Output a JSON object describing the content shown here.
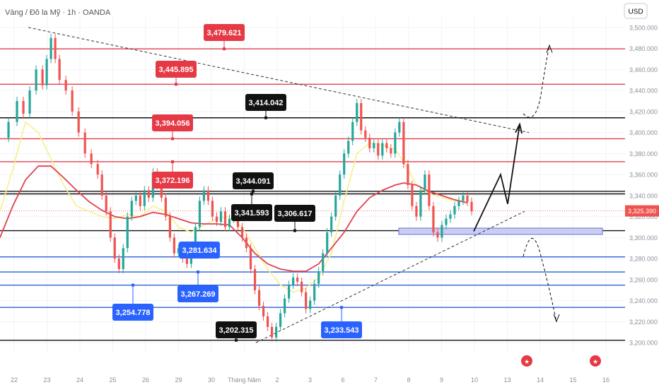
{
  "header": {
    "title": "Vàng / Đô la Mỹ · 1h · OANDA",
    "currency_button": "USD"
  },
  "chart_data": {
    "type": "line",
    "ylim": [
      3190,
      3510
    ],
    "y_ticks": [
      "3,500.000",
      "3,480.000",
      "3,460.000",
      "3,440.000",
      "3,420.000",
      "3,400.000",
      "3,380.000",
      "3,360.000",
      "3,340.000",
      "3,320.000",
      "3,300.000",
      "3,280.000",
      "3,260.000",
      "3,240.000",
      "3,220.000",
      "3,200.000"
    ],
    "y_tick_values": [
      3500,
      3480,
      3460,
      3440,
      3420,
      3400,
      3380,
      3360,
      3340,
      3320,
      3300,
      3280,
      3260,
      3240,
      3220,
      3200
    ],
    "x_ticks": [
      "22",
      "23",
      "24",
      "25",
      "26",
      "29",
      "30",
      "Tháng Năm",
      "2",
      "3",
      "6",
      "7",
      "8",
      "9",
      "10",
      "13",
      "14",
      "15",
      "16"
    ],
    "current_price": {
      "label": "3,325.390",
      "value": 3325.39
    },
    "levels": [
      {
        "label": "3,479.621",
        "value": 3479.621,
        "color": "#e0414f",
        "badge": "#e53945",
        "style": "red"
      },
      {
        "label": "3,445.895",
        "value": 3445.895,
        "color": "#e0414f",
        "badge": "#e53945",
        "style": "red"
      },
      {
        "label": "3,414.042",
        "value": 3414.042,
        "color": "#111111",
        "badge": "#111111",
        "style": "black"
      },
      {
        "label": "3,394.056",
        "value": 3394.056,
        "color": "#e0414f",
        "badge": "#e53945",
        "style": "red"
      },
      {
        "label": "3,372.196",
        "value": 3372.196,
        "color": "#e0414f",
        "badge": "#e53945",
        "style": "red"
      },
      {
        "label": "3,344.091",
        "value": 3344.091,
        "color": "#111111",
        "badge": "#111111",
        "style": "black"
      },
      {
        "label": "3,341.593",
        "value": 3341.593,
        "color": "#111111",
        "badge": "#111111",
        "style": "black"
      },
      {
        "label": "3,306.617",
        "value": 3306.617,
        "color": "#111111",
        "badge": "#111111",
        "style": "black"
      },
      {
        "label": "3,281.634",
        "value": 3281.634,
        "color": "#2d5fd6",
        "badge": "#2962ff",
        "style": "blue"
      },
      {
        "label": "3,267.269",
        "value": 3267.269,
        "color": "#2d5fd6",
        "badge": "#2962ff",
        "style": "blue"
      },
      {
        "label": "3,254.778",
        "value": 3254.778,
        "color": "#2d5fd6",
        "badge": "#2962ff",
        "style": "blue"
      },
      {
        "label": "3,233.543",
        "value": 3233.543,
        "color": "#2d5fd6",
        "badge": "#2962ff",
        "style": "blue"
      },
      {
        "label": "3,202.315",
        "value": 3202.315,
        "color": "#111111",
        "badge": "#111111",
        "style": "black"
      }
    ],
    "price_path": [
      [
        0,
        3395
      ],
      [
        4,
        3410
      ],
      [
        8,
        3430
      ],
      [
        11,
        3418
      ],
      [
        14,
        3440
      ],
      [
        17,
        3460
      ],
      [
        20,
        3445
      ],
      [
        22,
        3470
      ],
      [
        24,
        3490
      ],
      [
        26,
        3470
      ],
      [
        28,
        3450
      ],
      [
        31,
        3440
      ],
      [
        34,
        3420
      ],
      [
        37,
        3400
      ],
      [
        40,
        3380
      ],
      [
        43,
        3370
      ],
      [
        46,
        3360
      ],
      [
        48,
        3340
      ],
      [
        50,
        3325
      ],
      [
        52,
        3300
      ],
      [
        54,
        3280
      ],
      [
        56,
        3270
      ],
      [
        58,
        3290
      ],
      [
        60,
        3320
      ],
      [
        62,
        3335
      ],
      [
        64,
        3340
      ],
      [
        66,
        3330
      ],
      [
        68,
        3345
      ],
      [
        70,
        3338
      ],
      [
        72,
        3362
      ],
      [
        74,
        3350
      ],
      [
        76,
        3338
      ],
      [
        78,
        3320
      ],
      [
        80,
        3300
      ],
      [
        82,
        3285
      ],
      [
        84,
        3290
      ],
      [
        86,
        3280
      ],
      [
        88,
        3275
      ],
      [
        90,
        3290
      ],
      [
        92,
        3310
      ],
      [
        94,
        3335
      ],
      [
        96,
        3345
      ],
      [
        98,
        3335
      ],
      [
        100,
        3320
      ],
      [
        102,
        3315
      ],
      [
        104,
        3325
      ],
      [
        106,
        3310
      ],
      [
        108,
        3318
      ],
      [
        110,
        3322
      ],
      [
        112,
        3310
      ],
      [
        114,
        3300
      ],
      [
        116,
        3290
      ],
      [
        118,
        3270
      ],
      [
        120,
        3250
      ],
      [
        122,
        3235
      ],
      [
        124,
        3225
      ],
      [
        126,
        3215
      ],
      [
        128,
        3205
      ],
      [
        130,
        3215
      ],
      [
        132,
        3228
      ],
      [
        134,
        3242
      ],
      [
        136,
        3255
      ],
      [
        138,
        3262
      ],
      [
        140,
        3258
      ],
      [
        142,
        3248
      ],
      [
        144,
        3232
      ],
      [
        146,
        3240
      ],
      [
        148,
        3256
      ],
      [
        150,
        3268
      ],
      [
        152,
        3285
      ],
      [
        154,
        3305
      ],
      [
        156,
        3320
      ],
      [
        158,
        3340
      ],
      [
        160,
        3360
      ],
      [
        162,
        3380
      ],
      [
        164,
        3392
      ],
      [
        166,
        3410
      ],
      [
        168,
        3428
      ],
      [
        170,
        3402
      ],
      [
        172,
        3395
      ],
      [
        174,
        3385
      ],
      [
        176,
        3390
      ],
      [
        178,
        3378
      ],
      [
        180,
        3390
      ],
      [
        182,
        3385
      ],
      [
        184,
        3380
      ],
      [
        186,
        3400
      ],
      [
        188,
        3410
      ],
      [
        190,
        3370
      ],
      [
        192,
        3350
      ],
      [
        194,
        3330
      ],
      [
        196,
        3320
      ],
      [
        198,
        3345
      ],
      [
        200,
        3360
      ],
      [
        202,
        3330
      ],
      [
        204,
        3305
      ],
      [
        206,
        3300
      ],
      [
        208,
        3312
      ],
      [
        210,
        3318
      ],
      [
        212,
        3322
      ],
      [
        214,
        3330
      ],
      [
        216,
        3335
      ],
      [
        218,
        3340
      ],
      [
        220,
        3334
      ],
      [
        222,
        3325
      ]
    ],
    "triangle_top": [
      [
        0,
        3500
      ],
      [
        232,
        3400
      ]
    ],
    "triangle_bottom": [
      [
        113,
        3200
      ],
      [
        232,
        3325
      ]
    ],
    "zone": {
      "low": 3303,
      "high": 3309
    },
    "projection": [
      [
        222,
        3306
      ],
      [
        228,
        3360
      ],
      [
        231,
        3332
      ],
      [
        236,
        3408
      ]
    ],
    "up_arc": [
      [
        238,
        3418
      ],
      [
        242,
        3412
      ],
      [
        246,
        3440
      ],
      [
        248,
        3482
      ]
    ],
    "down_arc": [
      [
        238,
        3282
      ],
      [
        242,
        3302
      ],
      [
        246,
        3278
      ],
      [
        250,
        3220
      ]
    ],
    "sma_path": [
      [
        0,
        3325
      ],
      [
        6,
        3365
      ],
      [
        12,
        3410
      ],
      [
        18,
        3400
      ],
      [
        24,
        3375
      ],
      [
        30,
        3350
      ],
      [
        36,
        3330
      ],
      [
        42,
        3325
      ],
      [
        48,
        3320
      ],
      [
        54,
        3318
      ],
      [
        60,
        3322
      ],
      [
        66,
        3320
      ],
      [
        72,
        3330
      ],
      [
        78,
        3325
      ],
      [
        84,
        3310
      ],
      [
        90,
        3305
      ],
      [
        96,
        3312
      ],
      [
        102,
        3318
      ],
      [
        108,
        3320
      ],
      [
        114,
        3310
      ],
      [
        120,
        3290
      ],
      [
        126,
        3270
      ],
      [
        132,
        3255
      ],
      [
        138,
        3248
      ],
      [
        144,
        3252
      ],
      [
        150,
        3262
      ],
      [
        156,
        3285
      ],
      [
        162,
        3335
      ],
      [
        168,
        3380
      ],
      [
        174,
        3390
      ],
      [
        180,
        3388
      ],
      [
        186,
        3384
      ],
      [
        190,
        3372
      ],
      [
        196,
        3350
      ],
      [
        202,
        3342
      ],
      [
        208,
        3338
      ],
      [
        214,
        3335
      ],
      [
        220,
        3334
      ]
    ],
    "ema_path": [
      [
        0,
        3300
      ],
      [
        6,
        3330
      ],
      [
        12,
        3355
      ],
      [
        18,
        3368
      ],
      [
        24,
        3368
      ],
      [
        30,
        3357
      ],
      [
        36,
        3345
      ],
      [
        42,
        3334
      ],
      [
        48,
        3326
      ],
      [
        54,
        3320
      ],
      [
        60,
        3318
      ],
      [
        66,
        3320
      ],
      [
        72,
        3324
      ],
      [
        78,
        3322
      ],
      [
        84,
        3318
      ],
      [
        90,
        3314
      ],
      [
        96,
        3313
      ],
      [
        102,
        3313
      ],
      [
        108,
        3312
      ],
      [
        114,
        3300
      ],
      [
        120,
        3285
      ],
      [
        126,
        3275
      ],
      [
        132,
        3270
      ],
      [
        138,
        3268
      ],
      [
        144,
        3268
      ],
      [
        150,
        3275
      ],
      [
        156,
        3290
      ],
      [
        162,
        3305
      ],
      [
        168,
        3325
      ],
      [
        174,
        3338
      ],
      [
        180,
        3345
      ],
      [
        186,
        3350
      ],
      [
        190,
        3352
      ],
      [
        196,
        3350
      ],
      [
        202,
        3344
      ],
      [
        208,
        3340
      ],
      [
        214,
        3336
      ],
      [
        220,
        3333
      ]
    ],
    "colors": {
      "price": "#26a69a",
      "price_down": "#ef5350",
      "sma": "#f6f08a",
      "ema": "#e0414f",
      "zone_fill": "#c9cdf2",
      "zone_stroke": "#7b83d8",
      "grid": "#f0f3fa",
      "text": "#6b7280"
    },
    "grid": true
  }
}
